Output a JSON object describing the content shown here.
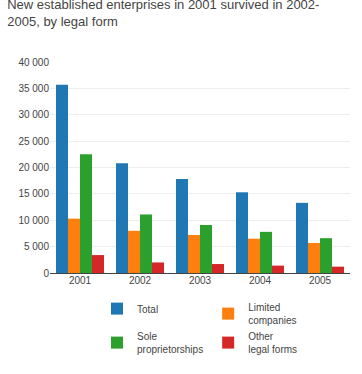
{
  "chart_data": {
    "type": "bar",
    "title": "New established enterprises in 2001 survived in 2002-\n2005, by legal form",
    "categories": [
      "2001",
      "2002",
      "2003",
      "2004",
      "2005"
    ],
    "series": [
      {
        "name": "Total",
        "values": [
          35700,
          20800,
          17800,
          15300,
          13300
        ]
      },
      {
        "name": "Limited\ncompanies",
        "values": [
          10300,
          8000,
          7200,
          6500,
          5700
        ]
      },
      {
        "name": "Sole\nproprietorships",
        "values": [
          22500,
          11100,
          9100,
          7800,
          6600
        ]
      },
      {
        "name": "Other\nlegal forms",
        "values": [
          3400,
          2000,
          1700,
          1400,
          1200
        ]
      }
    ],
    "ylim": [
      0,
      40000
    ],
    "yticks": [
      0,
      {
        "value": 5000,
        "label": "5 000"
      },
      {
        "value": 10000,
        "label": "10 000"
      },
      {
        "value": 15000,
        "label": "15 000"
      },
      {
        "value": 20000,
        "label": "20 000"
      },
      {
        "value": 25000,
        "label": "25 000"
      },
      {
        "value": 30000,
        "label": "30 000"
      },
      {
        "value": 35000,
        "label": "35 000"
      },
      {
        "value": 40000,
        "label": "40 000"
      }
    ],
    "grid": true,
    "legend": "bottom"
  }
}
